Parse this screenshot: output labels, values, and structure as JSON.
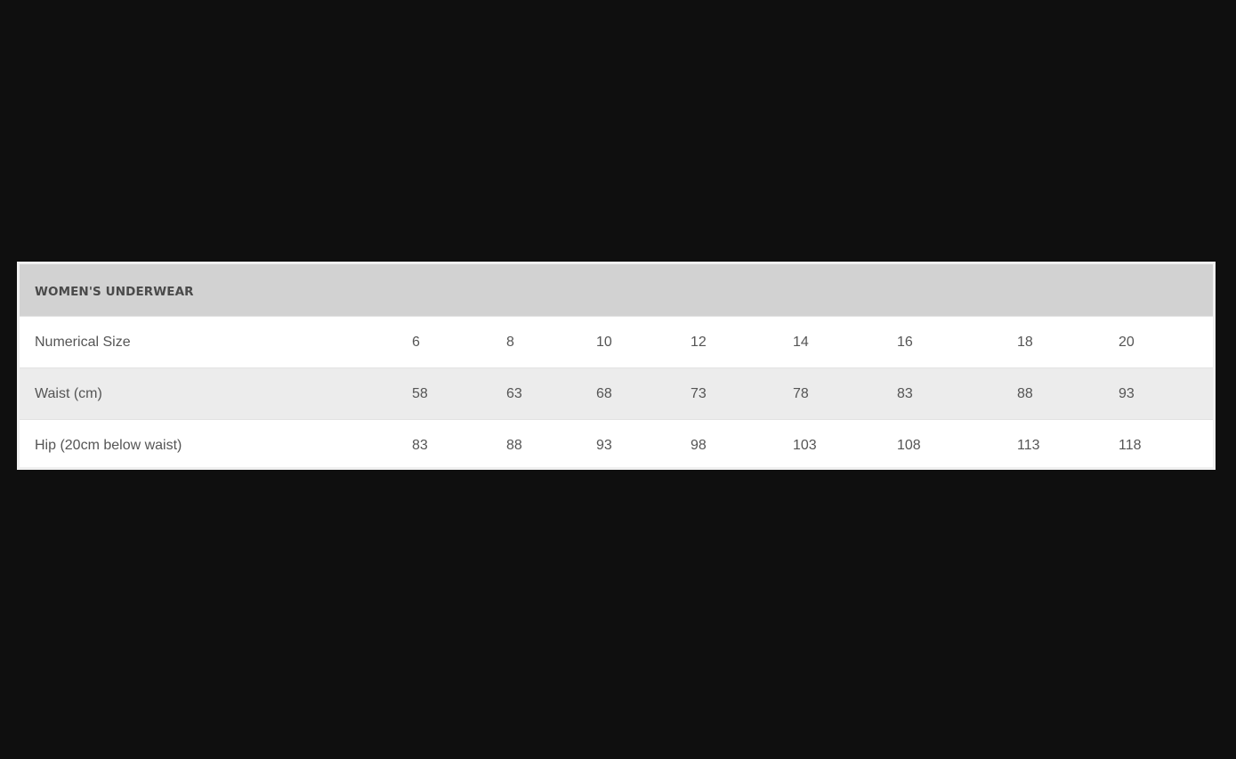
{
  "table": {
    "title": "WOMEN'S UNDERWEAR",
    "rows": [
      {
        "label": "Numerical Size",
        "values": [
          "6",
          "8",
          "10",
          "12",
          "14",
          "16",
          "18",
          "20"
        ]
      },
      {
        "label": "Waist (cm)",
        "values": [
          "58",
          "63",
          "68",
          "73",
          "78",
          "83",
          "88",
          "93"
        ]
      },
      {
        "label": "Hip (20cm below waist)",
        "values": [
          "83",
          "88",
          "93",
          "98",
          "103",
          "108",
          "113",
          "118"
        ]
      }
    ]
  },
  "colors": {
    "background": "#0f0f0f",
    "header": "#d2d2d2",
    "alt_row": "#ececec"
  }
}
